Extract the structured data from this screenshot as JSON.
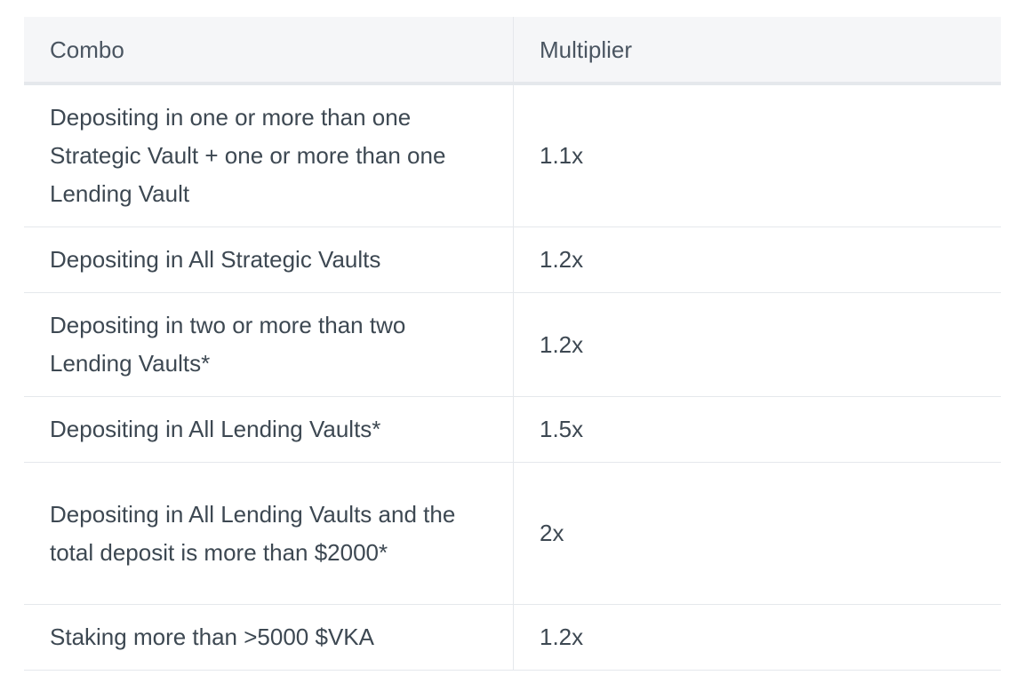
{
  "table": {
    "headers": [
      "Combo",
      "Multiplier"
    ],
    "rows": [
      {
        "combo": "Depositing in one or more than one Strategic Vault + one or more than one Lending Vault",
        "multiplier": "1.1x"
      },
      {
        "combo": "Depositing in All Strategic Vaults",
        "multiplier": "1.2x"
      },
      {
        "combo": "Depositing in two or more than two Lending Vaults*",
        "multiplier": "1.2x"
      },
      {
        "combo": "Depositing in All Lending Vaults*",
        "multiplier": "1.5x"
      },
      {
        "combo": "Depositing in All Lending Vaults and the total deposit is more than $2000*",
        "multiplier": "2x"
      },
      {
        "combo": "Staking more than >5000 $VKA",
        "multiplier": "1.2x"
      }
    ]
  }
}
